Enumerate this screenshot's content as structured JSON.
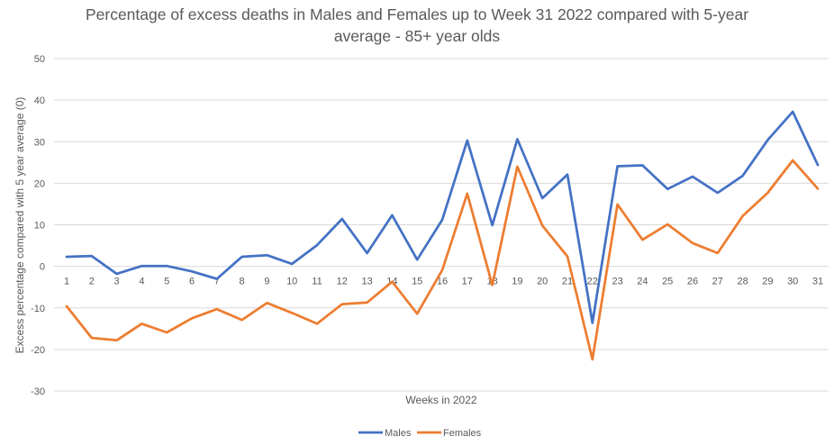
{
  "chart_data": {
    "type": "line",
    "title": [
      "Percentage of excess deaths in Males and Females up to Week 31 2022 compared with 5-year",
      "average - 85+ year olds"
    ],
    "xlabel": "Weeks in 2022",
    "ylabel": "Excess percentage compared with 5 year average (0)",
    "ylim": [
      -30,
      50
    ],
    "yticks": [
      50,
      40,
      30,
      20,
      10,
      0,
      -10,
      -20,
      -30
    ],
    "categories": [
      "1",
      "2",
      "3",
      "4",
      "5",
      "6",
      "7",
      "8",
      "9",
      "10",
      "11",
      "12",
      "13",
      "14",
      "15",
      "16",
      "17",
      "18",
      "19",
      "20",
      "21",
      "22",
      "23",
      "24",
      "25",
      "26",
      "27",
      "28",
      "29",
      "30",
      "31"
    ],
    "grid": "horizontal",
    "legend_position": "bottom",
    "series": [
      {
        "name": "Males",
        "color": "#4472c4",
        "values": [
          2.3,
          2.5,
          -1.8,
          0.1,
          0.1,
          -1.2,
          -3.0,
          2.3,
          2.7,
          0.6,
          5.1,
          11.4,
          3.2,
          12.3,
          1.6,
          11.2,
          30.3,
          9.9,
          30.6,
          16.4,
          22.1,
          -13.6,
          24.1,
          24.3,
          18.6,
          21.6,
          17.7,
          21.8,
          30.4,
          37.2,
          24.4
        ]
      },
      {
        "name": "Females",
        "color": "#ed7d31",
        "values": [
          -9.6,
          -17.2,
          -17.8,
          -13.8,
          -15.9,
          -12.5,
          -10.3,
          -12.9,
          -8.8,
          -11.2,
          -13.8,
          -9.1,
          -8.7,
          -3.7,
          -11.4,
          -0.9,
          17.5,
          -4.5,
          24.0,
          9.8,
          2.4,
          -22.4,
          14.9,
          6.4,
          10.1,
          5.6,
          3.2,
          12.1,
          17.7,
          25.5,
          18.7
        ]
      }
    ]
  }
}
